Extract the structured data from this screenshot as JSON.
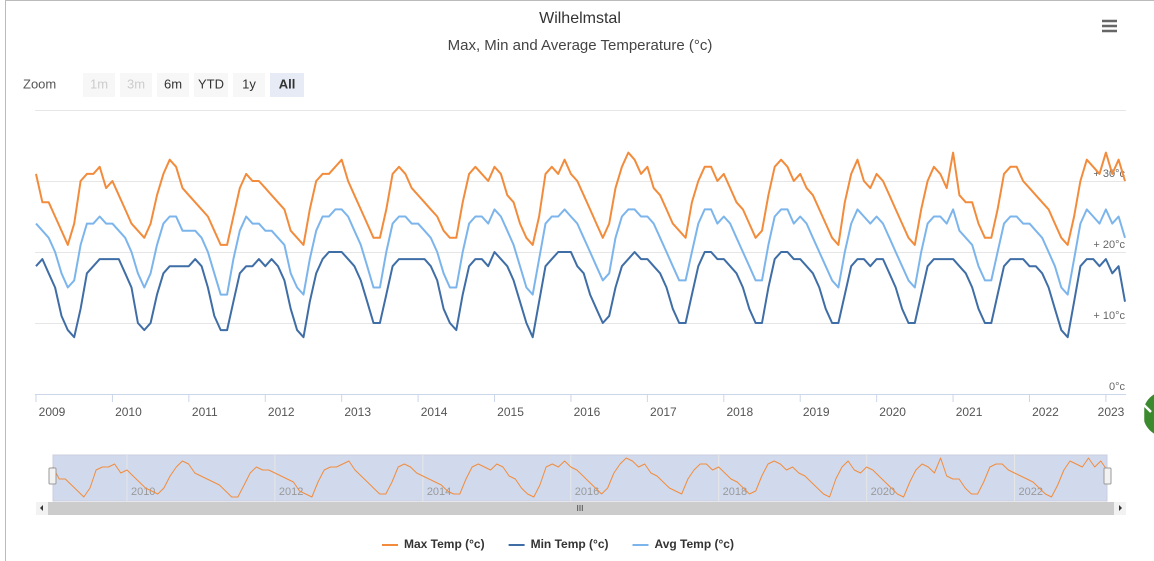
{
  "chart_data": {
    "type": "line",
    "title": "Wilhelmstal",
    "subtitle": "Max, Min and Average Temperature (°c)",
    "range_selector": {
      "label": "Zoom",
      "buttons": [
        "1m",
        "3m",
        "6m",
        "YTD",
        "1y",
        "All"
      ],
      "disabled": [
        "1m",
        "3m"
      ],
      "selected": "All"
    },
    "x": [
      "2009-01",
      "2009-02",
      "2009-03",
      "2009-04",
      "2009-05",
      "2009-06",
      "2009-07",
      "2009-08",
      "2009-09",
      "2009-10",
      "2009-11",
      "2009-12",
      "2010-01",
      "2010-02",
      "2010-03",
      "2010-04",
      "2010-05",
      "2010-06",
      "2010-07",
      "2010-08",
      "2010-09",
      "2010-10",
      "2010-11",
      "2010-12",
      "2011-01",
      "2011-02",
      "2011-03",
      "2011-04",
      "2011-05",
      "2011-06",
      "2011-07",
      "2011-08",
      "2011-09",
      "2011-10",
      "2011-11",
      "2011-12",
      "2012-01",
      "2012-02",
      "2012-03",
      "2012-04",
      "2012-05",
      "2012-06",
      "2012-07",
      "2012-08",
      "2012-09",
      "2012-10",
      "2012-11",
      "2012-12",
      "2013-01",
      "2013-02",
      "2013-03",
      "2013-04",
      "2013-05",
      "2013-06",
      "2013-07",
      "2013-08",
      "2013-09",
      "2013-10",
      "2013-11",
      "2013-12",
      "2014-01",
      "2014-02",
      "2014-03",
      "2014-04",
      "2014-05",
      "2014-06",
      "2014-07",
      "2014-08",
      "2014-09",
      "2014-10",
      "2014-11",
      "2014-12",
      "2015-01",
      "2015-02",
      "2015-03",
      "2015-04",
      "2015-05",
      "2015-06",
      "2015-07",
      "2015-08",
      "2015-09",
      "2015-10",
      "2015-11",
      "2015-12",
      "2016-01",
      "2016-02",
      "2016-03",
      "2016-04",
      "2016-05",
      "2016-06",
      "2016-07",
      "2016-08",
      "2016-09",
      "2016-10",
      "2016-11",
      "2016-12",
      "2017-01",
      "2017-02",
      "2017-03",
      "2017-04",
      "2017-05",
      "2017-06",
      "2017-07",
      "2017-08",
      "2017-09",
      "2017-10",
      "2017-11",
      "2017-12",
      "2018-01",
      "2018-02",
      "2018-03",
      "2018-04",
      "2018-05",
      "2018-06",
      "2018-07",
      "2018-08",
      "2018-09",
      "2018-10",
      "2018-11",
      "2018-12",
      "2019-01",
      "2019-02",
      "2019-03",
      "2019-04",
      "2019-05",
      "2019-06",
      "2019-07",
      "2019-08",
      "2019-09",
      "2019-10",
      "2019-11",
      "2019-12",
      "2020-01",
      "2020-02",
      "2020-03",
      "2020-04",
      "2020-05",
      "2020-06",
      "2020-07",
      "2020-08",
      "2020-09",
      "2020-10",
      "2020-11",
      "2020-12",
      "2021-01",
      "2021-02",
      "2021-03",
      "2021-04",
      "2021-05",
      "2021-06",
      "2021-07",
      "2021-08",
      "2021-09",
      "2021-10",
      "2021-11",
      "2021-12",
      "2022-01",
      "2022-02",
      "2022-03",
      "2022-04",
      "2022-05",
      "2022-06",
      "2022-07",
      "2022-08",
      "2022-09",
      "2022-10",
      "2022-11",
      "2022-12",
      "2023-01",
      "2023-02",
      "2023-03",
      "2023-04"
    ],
    "xlim": [
      "2009-01",
      "2023-04"
    ],
    "xticks": [
      "2009",
      "2010",
      "2011",
      "2012",
      "2013",
      "2014",
      "2015",
      "2016",
      "2017",
      "2018",
      "2019",
      "2020",
      "2021",
      "2022",
      "2023"
    ],
    "ylim": [
      0,
      40
    ],
    "yticks": [
      {
        "value": 0,
        "label": "0°c"
      },
      {
        "value": 10,
        "label": "+ 10°c"
      },
      {
        "value": 20,
        "label": "+ 20°c"
      },
      {
        "value": 30,
        "label": "+ 30°c"
      }
    ],
    "grid": true,
    "legend": "bottom",
    "navigator": {
      "series": 0,
      "xticks": [
        "2010",
        "2012",
        "2014",
        "2016",
        "2018",
        "2020",
        "2022"
      ],
      "scrollbar_grip": "III"
    },
    "series": [
      {
        "name": "Max Temp (°c)",
        "color": "#f28c3c",
        "values": [
          31,
          27,
          27,
          25,
          23,
          21,
          24,
          30,
          31,
          31,
          32,
          29,
          30,
          28,
          26,
          24,
          23,
          22,
          24,
          28,
          31,
          33,
          32,
          29,
          28,
          27,
          26,
          25,
          23,
          21,
          21,
          25,
          29,
          31,
          30,
          30,
          29,
          28,
          27,
          26,
          23,
          22,
          21,
          26,
          30,
          31,
          31,
          32,
          33,
          30,
          28,
          26,
          24,
          22,
          22,
          26,
          31,
          32,
          31,
          29,
          28,
          27,
          26,
          25,
          23,
          22,
          22,
          27,
          31,
          32,
          31,
          30,
          32,
          31,
          28,
          27,
          24,
          22,
          21,
          25,
          31,
          32,
          31,
          33,
          31,
          30,
          28,
          26,
          24,
          22,
          24,
          29,
          32,
          34,
          33,
          31,
          32,
          29,
          28,
          26,
          24,
          23,
          22,
          27,
          30,
          32,
          32,
          30,
          31,
          29,
          27,
          26,
          24,
          22,
          23,
          28,
          32,
          33,
          32,
          30,
          31,
          29,
          28,
          26,
          24,
          22,
          21,
          27,
          31,
          33,
          30,
          29,
          31,
          30,
          28,
          26,
          24,
          22,
          21,
          26,
          30,
          32,
          31,
          29,
          34,
          28,
          27,
          27,
          24,
          22,
          22,
          26,
          31,
          32,
          32,
          30,
          29,
          28,
          27,
          26,
          24,
          22,
          21,
          25,
          30,
          33,
          32,
          31,
          34,
          31,
          33,
          30
        ]
      },
      {
        "name": "Min Temp (°c)",
        "color": "#3f6ea6",
        "values": [
          18,
          19,
          17,
          15,
          11,
          9,
          8,
          12,
          17,
          18,
          19,
          19,
          19,
          19,
          17,
          15,
          10,
          9,
          10,
          14,
          17,
          18,
          18,
          18,
          18,
          19,
          18,
          15,
          11,
          9,
          9,
          13,
          17,
          18,
          18,
          19,
          18,
          19,
          18,
          16,
          12,
          9,
          8,
          13,
          17,
          19,
          20,
          20,
          20,
          19,
          18,
          16,
          13,
          10,
          10,
          14,
          18,
          19,
          19,
          19,
          19,
          19,
          18,
          16,
          12,
          10,
          9,
          14,
          18,
          19,
          19,
          18,
          20,
          19,
          18,
          16,
          13,
          10,
          8,
          13,
          18,
          19,
          20,
          20,
          20,
          18,
          17,
          14,
          12,
          10,
          11,
          15,
          18,
          19,
          20,
          19,
          19,
          18,
          17,
          15,
          12,
          10,
          10,
          14,
          18,
          20,
          20,
          19,
          19,
          18,
          17,
          15,
          12,
          10,
          10,
          15,
          19,
          20,
          20,
          19,
          19,
          18,
          17,
          15,
          12,
          10,
          10,
          14,
          18,
          19,
          19,
          18,
          19,
          19,
          17,
          15,
          12,
          10,
          10,
          14,
          18,
          19,
          19,
          19,
          19,
          18,
          17,
          15,
          12,
          10,
          10,
          14,
          18,
          19,
          19,
          19,
          18,
          18,
          17,
          15,
          12,
          9,
          8,
          13,
          18,
          19,
          19,
          18,
          19,
          17,
          18,
          13
        ]
      },
      {
        "name": "Avg Temp (°c)",
        "color": "#7cb5ec",
        "values": [
          24,
          23,
          22,
          20,
          17,
          15,
          16,
          21,
          24,
          24,
          25,
          24,
          24,
          23,
          22,
          20,
          17,
          15,
          17,
          21,
          24,
          25,
          25,
          23,
          23,
          23,
          22,
          20,
          17,
          14,
          14,
          19,
          23,
          25,
          24,
          24,
          23,
          23,
          22,
          21,
          17,
          15,
          14,
          19,
          23,
          25,
          25,
          26,
          26,
          25,
          23,
          21,
          18,
          15,
          15,
          20,
          24,
          25,
          25,
          24,
          24,
          23,
          22,
          20,
          17,
          15,
          15,
          20,
          24,
          25,
          25,
          24,
          26,
          25,
          23,
          21,
          18,
          15,
          14,
          19,
          24,
          25,
          25,
          26,
          25,
          24,
          22,
          20,
          18,
          16,
          17,
          22,
          25,
          26,
          26,
          25,
          25,
          24,
          22,
          20,
          18,
          16,
          16,
          20,
          24,
          26,
          26,
          24,
          25,
          24,
          22,
          20,
          18,
          16,
          16,
          21,
          25,
          26,
          26,
          24,
          25,
          24,
          22,
          20,
          18,
          16,
          15,
          20,
          24,
          26,
          25,
          24,
          25,
          24,
          22,
          20,
          18,
          16,
          15,
          20,
          24,
          25,
          25,
          24,
          26,
          23,
          22,
          21,
          18,
          16,
          16,
          20,
          24,
          25,
          25,
          24,
          24,
          23,
          22,
          20,
          18,
          15,
          14,
          19,
          24,
          26,
          25,
          24,
          26,
          24,
          25,
          22
        ]
      }
    ]
  }
}
